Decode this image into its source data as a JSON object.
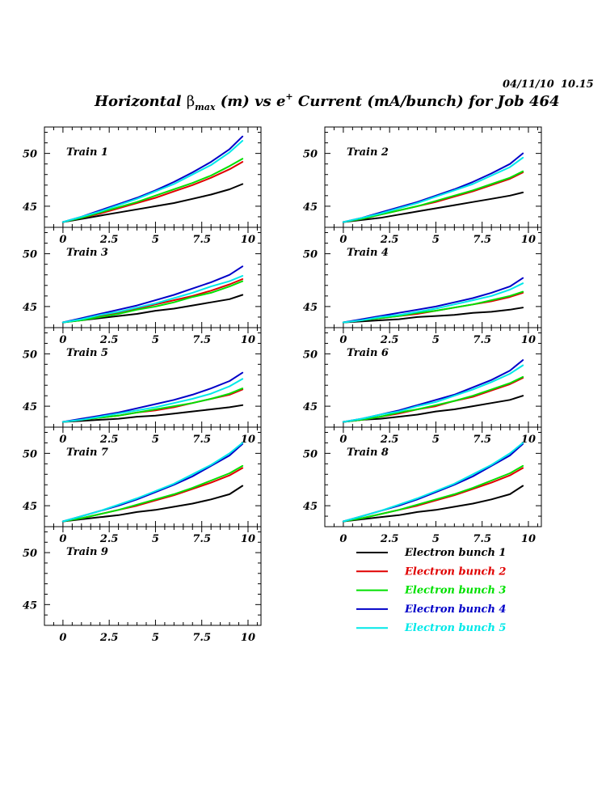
{
  "header": {
    "datestamp": "04/11/10",
    "timestamp": "10.15"
  },
  "title": {
    "part1": "Horizontal ",
    "beta": "β",
    "sub": "max",
    "part2": " (m) vs e",
    "sup": "+",
    "part3": " Current (mA/bunch) for Job 464"
  },
  "colors": {
    "Electron bunch 1": "#000000",
    "Electron bunch 2": "#e00000",
    "Electron bunch 3": "#00e000",
    "Electron bunch 4": "#0000c8",
    "Electron bunch 5": "#00e8e8"
  },
  "chart_data": {
    "type": "line",
    "title": "Horizontal βmax (m) vs e+ Current (mA/bunch) for Job 464",
    "xlabel": "",
    "ylabel": "",
    "xlim": [
      -1,
      10.7
    ],
    "ylim": [
      43,
      52.5
    ],
    "x_ticks": [
      "0",
      "2.5",
      "5",
      "7.5",
      "10"
    ],
    "y_ticks": [
      "45",
      "50"
    ],
    "legend": {
      "placement": "bottom-right",
      "entries": [
        "Electron bunch 1",
        "Electron bunch 2",
        "Electron bunch 3",
        "Electron bunch 4",
        "Electron bunch 5"
      ]
    },
    "x": [
      0,
      1,
      2,
      3,
      4,
      5,
      6,
      7,
      8,
      9,
      9.7
    ],
    "panels": [
      {
        "label": "Train 1",
        "series": [
          {
            "name": "Electron bunch 1",
            "values": [
              43.5,
              43.8,
              44.1,
              44.4,
              44.7,
              45.0,
              45.3,
              45.7,
              46.1,
              46.6,
              47.1
            ]
          },
          {
            "name": "Electron bunch 2",
            "values": [
              43.5,
              43.9,
              44.3,
              44.8,
              45.3,
              45.8,
              46.4,
              47.0,
              47.7,
              48.5,
              49.2
            ]
          },
          {
            "name": "Electron bunch 3",
            "values": [
              43.5,
              43.9,
              44.4,
              44.9,
              45.4,
              46.0,
              46.6,
              47.2,
              47.9,
              48.8,
              49.5
            ]
          },
          {
            "name": "Electron bunch 4",
            "values": [
              43.5,
              44.0,
              44.6,
              45.2,
              45.8,
              46.5,
              47.3,
              48.2,
              49.2,
              50.4,
              51.6
            ]
          },
          {
            "name": "Electron bunch 5",
            "values": [
              43.5,
              44.0,
              44.5,
              45.1,
              45.7,
              46.4,
              47.1,
              48.0,
              48.9,
              50.1,
              51.2
            ]
          }
        ]
      },
      {
        "label": "Train 2",
        "series": [
          {
            "name": "Electron bunch 1",
            "values": [
              43.5,
              43.7,
              43.9,
              44.2,
              44.5,
              44.8,
              45.1,
              45.4,
              45.7,
              46.0,
              46.3
            ]
          },
          {
            "name": "Electron bunch 2",
            "values": [
              43.5,
              43.8,
              44.2,
              44.6,
              45.0,
              45.4,
              45.9,
              46.4,
              47.0,
              47.6,
              48.2
            ]
          },
          {
            "name": "Electron bunch 3",
            "values": [
              43.5,
              43.8,
              44.2,
              44.6,
              45.0,
              45.5,
              46.0,
              46.5,
              47.1,
              47.7,
              48.3
            ]
          },
          {
            "name": "Electron bunch 4",
            "values": [
              43.5,
              43.9,
              44.4,
              44.9,
              45.4,
              46.0,
              46.6,
              47.3,
              48.1,
              49.0,
              50.0
            ]
          },
          {
            "name": "Electron bunch 5",
            "values": [
              43.5,
              43.9,
              44.3,
              44.8,
              45.3,
              45.9,
              46.5,
              47.1,
              47.9,
              48.7,
              49.6
            ]
          }
        ]
      },
      {
        "label": "Train 3",
        "series": [
          {
            "name": "Electron bunch 1",
            "values": [
              43.5,
              43.7,
              43.9,
              44.1,
              44.3,
              44.6,
              44.8,
              45.1,
              45.4,
              45.7,
              46.1
            ]
          },
          {
            "name": "Electron bunch 2",
            "values": [
              43.5,
              43.8,
              44.1,
              44.4,
              44.8,
              45.2,
              45.6,
              46.0,
              46.5,
              47.1,
              47.6
            ]
          },
          {
            "name": "Electron bunch 3",
            "values": [
              43.5,
              43.7,
              44.0,
              44.3,
              44.7,
              45.0,
              45.4,
              45.9,
              46.3,
              46.9,
              47.4
            ]
          },
          {
            "name": "Electron bunch 4",
            "values": [
              43.5,
              43.9,
              44.3,
              44.7,
              45.1,
              45.6,
              46.1,
              46.7,
              47.3,
              48.0,
              48.8
            ]
          },
          {
            "name": "Electron bunch 5",
            "values": [
              43.5,
              43.8,
              44.2,
              44.5,
              44.9,
              45.3,
              45.8,
              46.3,
              46.9,
              47.4,
              47.9
            ]
          }
        ]
      },
      {
        "label": "Train 4",
        "series": [
          {
            "name": "Electron bunch 1",
            "values": [
              43.5,
              43.6,
              43.7,
              43.8,
              44.0,
              44.1,
              44.2,
              44.4,
              44.5,
              44.7,
              44.9
            ]
          },
          {
            "name": "Electron bunch 2",
            "values": [
              43.5,
              43.7,
              43.9,
              44.1,
              44.3,
              44.6,
              44.9,
              45.2,
              45.5,
              45.9,
              46.3
            ]
          },
          {
            "name": "Electron bunch 3",
            "values": [
              43.5,
              43.7,
              43.9,
              44.1,
              44.4,
              44.6,
              44.9,
              45.2,
              45.6,
              46.0,
              46.4
            ]
          },
          {
            "name": "Electron bunch 4",
            "values": [
              43.5,
              43.8,
              44.1,
              44.4,
              44.7,
              45.0,
              45.4,
              45.8,
              46.3,
              46.9,
              47.7
            ]
          },
          {
            "name": "Electron bunch 5",
            "values": [
              43.5,
              43.7,
              44.0,
              44.2,
              44.5,
              44.8,
              45.2,
              45.6,
              46.0,
              46.6,
              47.2
            ]
          }
        ]
      },
      {
        "label": "Train 5",
        "series": [
          {
            "name": "Electron bunch 1",
            "values": [
              43.5,
              43.6,
              43.7,
              43.8,
              44.0,
              44.1,
              44.3,
              44.5,
              44.7,
              44.9,
              45.1
            ]
          },
          {
            "name": "Electron bunch 2",
            "values": [
              43.5,
              43.7,
              43.9,
              44.1,
              44.4,
              44.6,
              44.9,
              45.3,
              45.7,
              46.1,
              46.6
            ]
          },
          {
            "name": "Electron bunch 3",
            "values": [
              43.5,
              43.7,
              43.9,
              44.1,
              44.4,
              44.7,
              45.0,
              45.3,
              45.7,
              46.2,
              46.7
            ]
          },
          {
            "name": "Electron bunch 4",
            "values": [
              43.5,
              43.8,
              44.1,
              44.4,
              44.8,
              45.2,
              45.6,
              46.1,
              46.7,
              47.4,
              48.2
            ]
          },
          {
            "name": "Electron bunch 5",
            "values": [
              43.5,
              43.7,
              44.0,
              44.3,
              44.6,
              44.9,
              45.3,
              45.7,
              46.2,
              46.9,
              47.6
            ]
          }
        ]
      },
      {
        "label": "Train 6",
        "series": [
          {
            "name": "Electron bunch 1",
            "values": [
              43.5,
              43.7,
              43.8,
              44.0,
              44.2,
              44.5,
              44.7,
              45.0,
              45.3,
              45.6,
              46.0
            ]
          },
          {
            "name": "Electron bunch 2",
            "values": [
              43.5,
              43.7,
              44.0,
              44.3,
              44.7,
              45.0,
              45.5,
              45.9,
              46.5,
              47.1,
              47.7
            ]
          },
          {
            "name": "Electron bunch 3",
            "values": [
              43.5,
              43.7,
              44.0,
              44.4,
              44.7,
              45.1,
              45.5,
              46.0,
              46.6,
              47.2,
              47.8
            ]
          },
          {
            "name": "Electron bunch 4",
            "values": [
              43.5,
              43.8,
              44.2,
              44.6,
              45.1,
              45.6,
              46.1,
              46.8,
              47.5,
              48.4,
              49.4
            ]
          },
          {
            "name": "Electron bunch 5",
            "values": [
              43.5,
              43.8,
              44.2,
              44.5,
              45.0,
              45.4,
              46.0,
              46.6,
              47.3,
              48.1,
              48.9
            ]
          }
        ]
      },
      {
        "label": "Train 7",
        "series": [
          {
            "name": "Electron bunch 1",
            "values": [
              43.5,
              43.7,
              43.9,
              44.1,
              44.4,
              44.6,
              44.9,
              45.2,
              45.6,
              46.1,
              46.9
            ]
          },
          {
            "name": "Electron bunch 2",
            "values": [
              43.5,
              43.8,
              44.2,
              44.6,
              45.0,
              45.5,
              46.0,
              46.6,
              47.2,
              47.9,
              48.6
            ]
          },
          {
            "name": "Electron bunch 3",
            "values": [
              43.5,
              43.8,
              44.2,
              44.6,
              45.1,
              45.6,
              46.1,
              46.7,
              47.4,
              48.1,
              48.8
            ]
          },
          {
            "name": "Electron bunch 4",
            "values": [
              43.5,
              44.0,
              44.5,
              45.0,
              45.6,
              46.3,
              47.0,
              47.8,
              48.8,
              49.8,
              50.9
            ]
          },
          {
            "name": "Electron bunch 5",
            "values": [
              43.5,
              44.0,
              44.5,
              45.1,
              45.7,
              46.4,
              47.1,
              48.0,
              48.9,
              50.0,
              51.0
            ]
          }
        ]
      },
      {
        "label": "Train 8",
        "series": [
          {
            "name": "Electron bunch 1",
            "values": [
              43.5,
              43.7,
              43.9,
              44.1,
              44.4,
              44.6,
              44.9,
              45.2,
              45.6,
              46.1,
              46.9
            ]
          },
          {
            "name": "Electron bunch 2",
            "values": [
              43.5,
              43.8,
              44.2,
              44.6,
              45.0,
              45.5,
              46.0,
              46.6,
              47.2,
              47.9,
              48.6
            ]
          },
          {
            "name": "Electron bunch 3",
            "values": [
              43.5,
              43.8,
              44.2,
              44.6,
              45.1,
              45.6,
              46.1,
              46.7,
              47.4,
              48.1,
              48.8
            ]
          },
          {
            "name": "Electron bunch 4",
            "values": [
              43.5,
              44.0,
              44.5,
              45.0,
              45.6,
              46.3,
              47.0,
              47.8,
              48.8,
              49.8,
              50.9
            ]
          },
          {
            "name": "Electron bunch 5",
            "values": [
              43.5,
              44.0,
              44.5,
              45.1,
              45.7,
              46.4,
              47.1,
              48.0,
              48.9,
              50.0,
              51.0
            ]
          }
        ]
      },
      {
        "label": "Train 9",
        "series": []
      }
    ]
  }
}
